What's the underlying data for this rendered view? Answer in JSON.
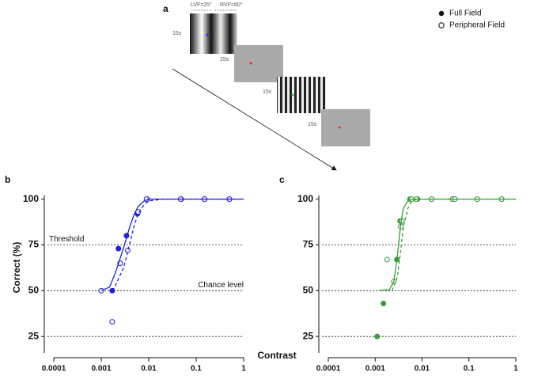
{
  "figure": {
    "xlabel": "Contrast",
    "ylabel": "Correct (%)"
  },
  "panel_a": {
    "label": "a",
    "lvf": "LVF=25°",
    "rvf": "RVF=60°",
    "durations": [
      "15s",
      "15s",
      "15s",
      "15s"
    ]
  },
  "legend": {
    "full": "Full Field",
    "peripheral": "Peripheral Field"
  },
  "chart_data": [
    {
      "type": "scatter",
      "label": "b",
      "xscale": "log",
      "xlim": [
        0.0001,
        1
      ],
      "xticks": [
        0.0001,
        0.001,
        0.01,
        0.1,
        1
      ],
      "ylim": [
        16,
        102
      ],
      "yticks": [
        25,
        50,
        75,
        100
      ],
      "hlines": [
        25,
        50,
        75
      ],
      "annotations": [
        {
          "text": "Threshold",
          "y": 75,
          "side": "left"
        },
        {
          "text": "Chance level",
          "y": 50,
          "side": "right"
        }
      ],
      "series": [
        {
          "style": "marker",
          "filled": true,
          "color": "#1f1fdc",
          "x": [
            0.0017,
            0.0023,
            0.0034,
            0.0058,
            0.0092,
            0.048,
            0.15,
            0.5
          ],
          "values": [
            50,
            73,
            80,
            92,
            100,
            100,
            100,
            100
          ]
        },
        {
          "style": "marker",
          "filled": false,
          "color": "#1f1fdc",
          "x": [
            0.001,
            0.0017,
            0.0025,
            0.0036,
            0.006,
            0.009,
            0.047,
            0.15,
            0.5
          ],
          "values": [
            50,
            33,
            65,
            72,
            93,
            100,
            100,
            100,
            100
          ]
        },
        {
          "style": "line",
          "dashed": false,
          "color": "#1f1fdc",
          "x": [
            0.001,
            0.0015,
            0.002,
            0.003,
            0.004,
            0.005,
            0.006,
            0.008,
            0.01,
            0.02,
            0.05,
            0.1,
            0.2,
            0.5,
            1
          ],
          "values": [
            50,
            52,
            60,
            74,
            85,
            92,
            96,
            99,
            100,
            100,
            100,
            100,
            100,
            100,
            100
          ]
        },
        {
          "style": "line",
          "dashed": true,
          "color": "#1f1fdc",
          "x": [
            0.0017,
            0.002,
            0.003,
            0.004,
            0.005,
            0.006,
            0.008,
            0.01,
            0.02,
            0.05,
            0.1,
            0.2,
            0.5,
            1
          ],
          "values": [
            50,
            53,
            63,
            76,
            86,
            92,
            97,
            99,
            100,
            100,
            100,
            100,
            100,
            100
          ]
        }
      ]
    },
    {
      "type": "scatter",
      "label": "c",
      "xscale": "log",
      "xlim": [
        0.0001,
        1
      ],
      "xticks": [
        0.0001,
        0.001,
        0.01,
        0.1,
        1
      ],
      "ylim": [
        16,
        102
      ],
      "yticks": [
        25,
        50,
        75,
        100
      ],
      "hlines": [
        25,
        50,
        75
      ],
      "series": [
        {
          "style": "marker",
          "filled": true,
          "color": "#3a9d3a",
          "x": [
            0.0011,
            0.0015,
            0.0029,
            0.0034,
            0.0055,
            0.008,
            0.016,
            0.045,
            0.05,
            0.15,
            0.5
          ],
          "values": [
            25,
            43,
            67,
            88,
            100,
            100,
            100,
            100,
            100,
            100,
            100
          ]
        },
        {
          "style": "marker",
          "filled": false,
          "color": "#3a9d3a",
          "x": [
            0.0018,
            0.0025,
            0.0035,
            0.0037,
            0.006,
            0.0075,
            0.016,
            0.045,
            0.05,
            0.15,
            0.5
          ],
          "values": [
            67,
            55,
            85,
            88,
            100,
            100,
            100,
            100,
            100,
            100,
            100
          ]
        },
        {
          "style": "line",
          "dashed": false,
          "color": "#3a9d3a",
          "x": [
            0.0012,
            0.002,
            0.0025,
            0.003,
            0.0035,
            0.004,
            0.005,
            0.006,
            0.01,
            0.1,
            1
          ],
          "values": [
            50,
            50.5,
            55,
            70,
            86,
            95,
            99,
            100,
            100,
            100,
            100
          ]
        },
        {
          "style": "line",
          "dashed": true,
          "color": "#3a9d3a",
          "x": [
            0.0023,
            0.003,
            0.0035,
            0.004,
            0.005,
            0.006,
            0.008,
            0.01,
            0.1,
            1
          ],
          "values": [
            50,
            58,
            72,
            85,
            95,
            99,
            100,
            100,
            100,
            100
          ]
        }
      ]
    }
  ]
}
